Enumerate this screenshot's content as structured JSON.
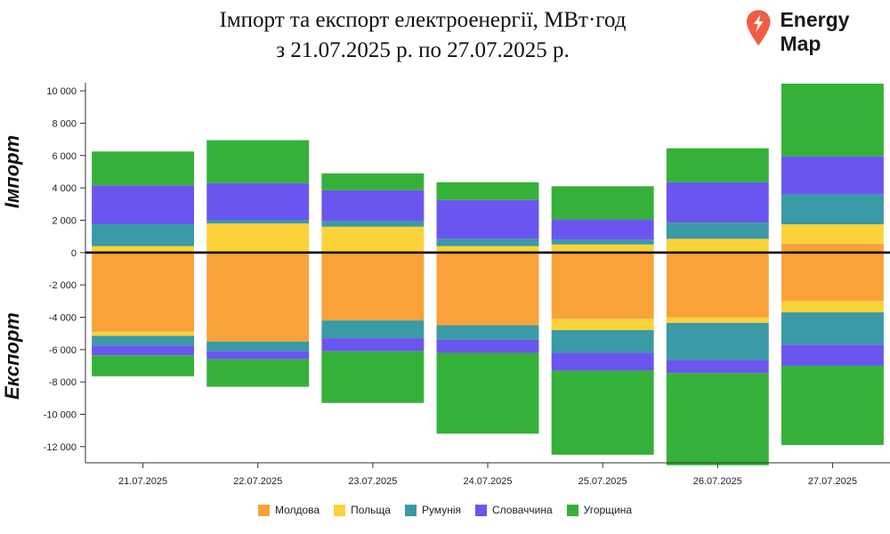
{
  "header": {
    "title_line1": "Імпорт та експорт електроенергії, МВт·год",
    "title_line2": "з 21.07.2025 р. по 27.07.2025 р.",
    "brand": "Energy Map"
  },
  "chart_data": {
    "type": "bar",
    "stacked": true,
    "diverging": true,
    "import_label": "Імпорт",
    "export_label": "Експорт",
    "categories": [
      "21.07.2025",
      "22.07.2025",
      "23.07.2025",
      "24.07.2025",
      "25.07.2025",
      "26.07.2025",
      "27.07.2025"
    ],
    "ylim": [
      -13000,
      10500
    ],
    "yticks": [
      10000,
      8000,
      6000,
      4000,
      2000,
      0,
      -2000,
      -4000,
      -6000,
      -8000,
      -10000,
      -12000
    ],
    "ytick_labels": [
      "10 000",
      "8 000",
      "6 000",
      "4 000",
      "2 000",
      "0",
      "-2 000",
      "-4 000",
      "-6 000",
      "-8 000",
      "-10 000",
      "-12 000"
    ],
    "grid": false,
    "legend_position": "bottom",
    "series": [
      {
        "name": "Молдова",
        "color": "#F9A23A",
        "import": [
          0,
          0,
          0,
          0,
          0,
          0,
          550
        ],
        "export": [
          4900,
          5500,
          4200,
          4500,
          4100,
          4000,
          3000
        ]
      },
      {
        "name": "Польща",
        "color": "#FCD23A",
        "import": [
          400,
          1800,
          1600,
          400,
          500,
          850,
          1200
        ],
        "export": [
          250,
          0,
          0,
          0,
          700,
          350,
          700
        ]
      },
      {
        "name": "Румунія",
        "color": "#3A9AA5",
        "import": [
          1350,
          200,
          350,
          450,
          300,
          1000,
          1850
        ],
        "export": [
          600,
          600,
          1100,
          900,
          1400,
          2300,
          2000
        ]
      },
      {
        "name": "Словаччина",
        "color": "#6A56EE",
        "import": [
          2400,
          2300,
          1900,
          2400,
          1250,
          2500,
          2350
        ],
        "export": [
          600,
          500,
          800,
          800,
          1100,
          800,
          1300
        ]
      },
      {
        "name": "Угорщина",
        "color": "#35B13A",
        "import": [
          2100,
          2650,
          1050,
          1100,
          2050,
          2100,
          4500
        ],
        "export": [
          1300,
          1700,
          3200,
          5000,
          5200,
          5700,
          4900
        ]
      }
    ]
  }
}
